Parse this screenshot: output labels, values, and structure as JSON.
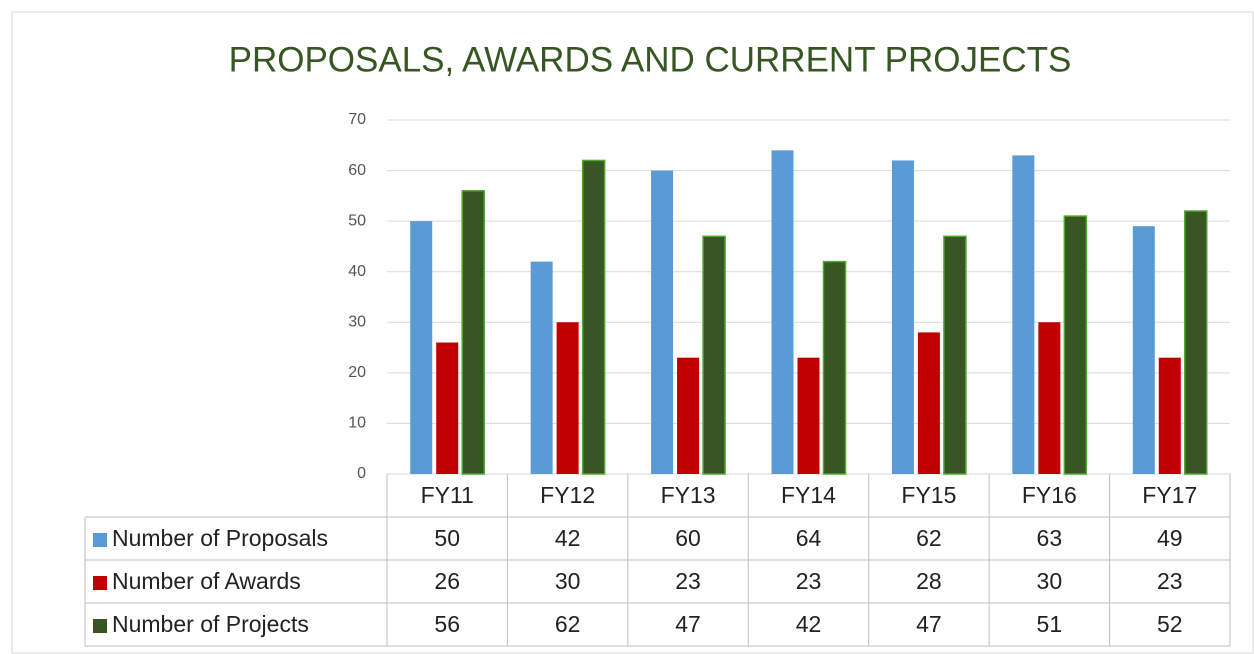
{
  "chart_data": {
    "type": "bar",
    "title": "PROPOSALS, AWARDS AND CURRENT PROJECTS",
    "categories": [
      "FY11",
      "FY12",
      "FY13",
      "FY14",
      "FY15",
      "FY16",
      "FY17"
    ],
    "series": [
      {
        "name": "Number of Proposals",
        "color": "#5b9bd5",
        "values": [
          50,
          42,
          60,
          64,
          62,
          63,
          49
        ]
      },
      {
        "name": "Number of Awards",
        "color": "#c00000",
        "values": [
          26,
          30,
          23,
          23,
          28,
          30,
          23
        ]
      },
      {
        "name": "Number of Projects",
        "color": "#375623",
        "values": [
          56,
          62,
          47,
          42,
          47,
          51,
          52
        ]
      }
    ],
    "ylim": [
      0,
      70
    ],
    "yticks": [
      0,
      10,
      20,
      30,
      40,
      50,
      60,
      70
    ],
    "grid": true
  }
}
